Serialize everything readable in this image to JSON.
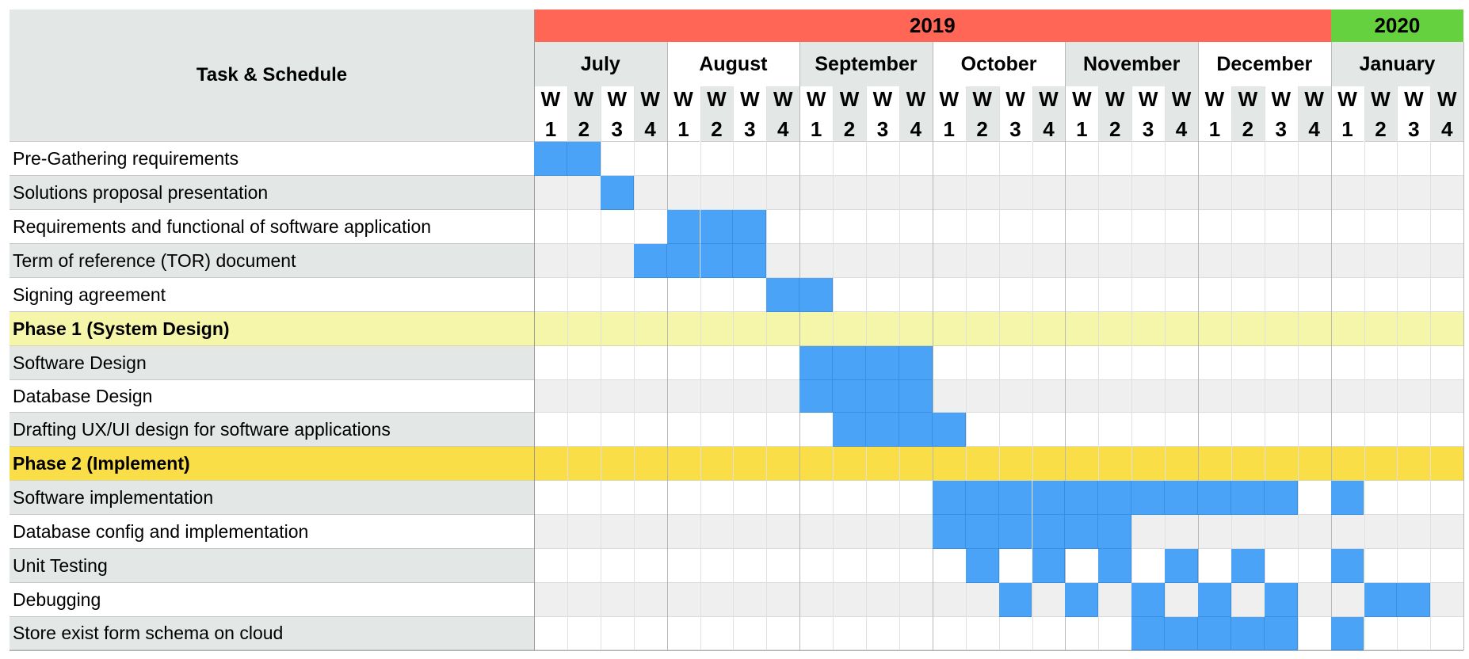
{
  "chart_data": {
    "type": "gantt",
    "title": "Task & Schedule",
    "years": [
      {
        "label": "2019",
        "color": "#ff6655",
        "months": 6
      },
      {
        "label": "2020",
        "color": "#66d13f",
        "months": 1
      }
    ],
    "months": [
      "July",
      "August",
      "September",
      "October",
      "November",
      "December",
      "January"
    ],
    "weeks_per_month": 4,
    "week_label_top": "W",
    "week_numbers": [
      "1",
      "2",
      "3",
      "4"
    ],
    "bar_color": "#4aa3f7",
    "rows": [
      {
        "label": "Pre-Gathering requirements",
        "weeks": [
          0,
          1
        ]
      },
      {
        "label": "Solutions proposal presentation",
        "weeks": [
          2
        ]
      },
      {
        "label": "Requirements and functional of software application",
        "weeks": [
          4,
          5,
          6
        ]
      },
      {
        "label": "Term of reference (TOR) document",
        "weeks": [
          3,
          4,
          5,
          6
        ]
      },
      {
        "label": "Signing agreement",
        "weeks": [
          7,
          8
        ]
      },
      {
        "label": "Phase 1 (System Design)",
        "phase": true,
        "color": "#f6f6aa"
      },
      {
        "label": "Software Design",
        "weeks": [
          8,
          9,
          10,
          11
        ]
      },
      {
        "label": "Database Design",
        "weeks": [
          8,
          9,
          10,
          11
        ]
      },
      {
        "label": "Drafting UX/UI design for software applications",
        "weeks": [
          9,
          10,
          11,
          12
        ]
      },
      {
        "label": "Phase 2 (Implement)",
        "phase": true,
        "color": "#f9de47"
      },
      {
        "label": "Software implementation",
        "weeks": [
          12,
          13,
          14,
          15,
          16,
          17,
          18,
          19,
          20,
          21,
          22,
          24
        ]
      },
      {
        "label": "Database config and implementation",
        "weeks": [
          12,
          13,
          14,
          15,
          16,
          17
        ]
      },
      {
        "label": "Unit Testing",
        "weeks": [
          13,
          15,
          17,
          19,
          21,
          24
        ]
      },
      {
        "label": "Debugging",
        "weeks": [
          14,
          16,
          18,
          20,
          22,
          25,
          26
        ]
      },
      {
        "label": "Store exist form schema on cloud",
        "weeks": [
          18,
          19,
          20,
          21,
          22,
          24
        ]
      }
    ]
  }
}
